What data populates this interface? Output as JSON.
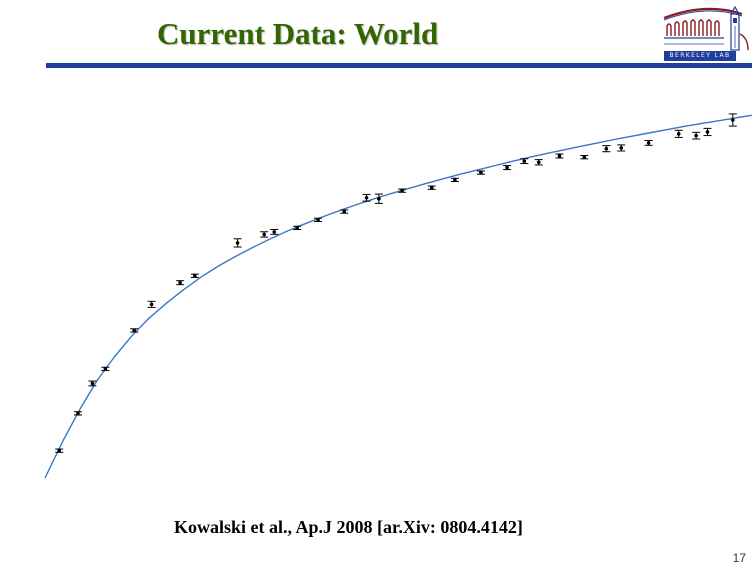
{
  "slide": {
    "title": "Current Data: World",
    "logo_text": "BERKELEY LAB",
    "logo_icon": "berkeley-lab-logo-icon",
    "citation": "Kowalski et al., Ap.J 2008 [ar.Xiv: 0804.4142]",
    "slide_number": "17"
  },
  "colors": {
    "title": "#336600",
    "rule": "#1f3e9e",
    "fit_curve": "#3b78c4",
    "points": "#000000"
  },
  "chart_data": {
    "type": "scatter",
    "title": "",
    "xlabel": "",
    "ylabel": "",
    "xlim": [
      0,
      1
    ],
    "ylim": [
      0,
      1
    ],
    "grid": false,
    "axes_visible": false,
    "series": [
      {
        "x": [
          0.0205,
          0.0476,
          0.0684,
          0.0871,
          0.1287,
          0.1538,
          0.195,
          0.2162,
          0.2779,
          0.3163,
          0.3308,
          0.3639,
          0.394,
          0.4318,
          0.464,
          0.4818,
          0.5153,
          0.558,
          0.5915,
          0.629,
          0.6668,
          0.6916,
          0.7125,
          0.7424,
          0.7782,
          0.81,
          0.8315,
          0.871,
          0.9144,
          0.9396,
          0.956,
          0.9925
        ],
        "y": [
          0.0763,
          0.1806,
          0.2641,
          0.3048,
          0.4122,
          0.485,
          0.5456,
          0.5649,
          0.6567,
          0.6804,
          0.6875,
          0.6987,
          0.7211,
          0.7442,
          0.7827,
          0.7801,
          0.8027,
          0.8109,
          0.8327,
          0.8531,
          0.8671,
          0.8851,
          0.8819,
          0.8995,
          0.8962,
          0.9199,
          0.922,
          0.936,
          0.9613,
          0.9562,
          0.9666,
          1.0
        ],
        "yerr": [
          0.0046,
          0.0046,
          0.0067,
          0.0046,
          0.0046,
          0.0085,
          0.0056,
          0.0046,
          0.0115,
          0.0074,
          0.0067,
          0.0046,
          0.0046,
          0.0046,
          0.0093,
          0.013,
          0.0046,
          0.0046,
          0.0046,
          0.0046,
          0.0056,
          0.0067,
          0.0074,
          0.0056,
          0.0046,
          0.0085,
          0.0085,
          0.0067,
          0.01,
          0.0093,
          0.01,
          0.017
        ]
      }
    ],
    "fit_curve": {
      "x": [
        0.0,
        0.025,
        0.05,
        0.075,
        0.1,
        0.125,
        0.15,
        0.175,
        0.2,
        0.225,
        0.25,
        0.275,
        0.3,
        0.325,
        0.35,
        0.375,
        0.4,
        0.425,
        0.45,
        0.475,
        0.5,
        0.525,
        0.55,
        0.575,
        0.6,
        0.625,
        0.65,
        0.675,
        0.7,
        0.725,
        0.75,
        0.775,
        0.8,
        0.825,
        0.85,
        0.875,
        0.9,
        0.925,
        0.95,
        0.975,
        1.0,
        1.02
      ],
      "y": [
        0.0,
        0.1,
        0.191,
        0.272,
        0.338,
        0.396,
        0.446,
        0.488,
        0.526,
        0.561,
        0.592,
        0.619,
        0.644,
        0.668,
        0.69,
        0.71,
        0.729,
        0.747,
        0.764,
        0.78,
        0.795,
        0.809,
        0.823,
        0.836,
        0.849,
        0.861,
        0.873,
        0.885,
        0.896,
        0.907,
        0.917,
        0.927,
        0.937,
        0.947,
        0.956,
        0.965,
        0.974,
        0.983,
        0.991,
        0.999,
        1.007,
        1.013
      ]
    }
  }
}
